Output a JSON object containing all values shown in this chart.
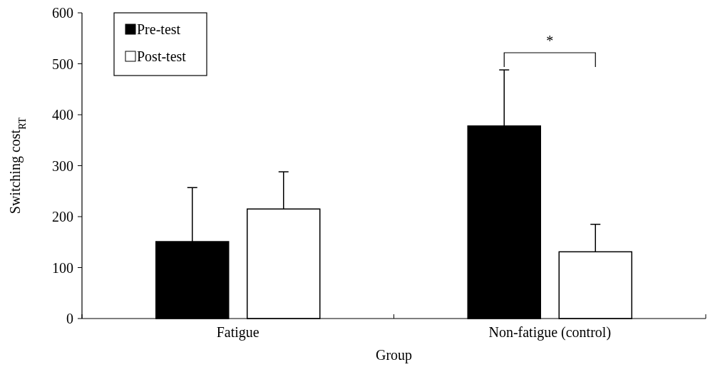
{
  "chart_data": {
    "type": "bar",
    "categories": [
      "Fatigue",
      "Non-fatigue (control)"
    ],
    "series": [
      {
        "name": "Pre-test",
        "color": "#000000",
        "values": [
          151,
          378
        ],
        "errors": [
          [
            151,
            257
          ],
          [
            378,
            488
          ]
        ]
      },
      {
        "name": "Post-test",
        "color": "#ffffff",
        "values": [
          215,
          131
        ],
        "errors": [
          [
            215,
            288
          ],
          [
            131,
            185
          ]
        ]
      }
    ],
    "xlabel": "Group",
    "ylabel": "Switching cost$_{RT}$",
    "ylim": [
      0,
      600
    ],
    "yticks": [
      0,
      100,
      200,
      300,
      400,
      500,
      600
    ],
    "legend": "top left",
    "grid": false,
    "annotations": [
      "*"
    ]
  }
}
